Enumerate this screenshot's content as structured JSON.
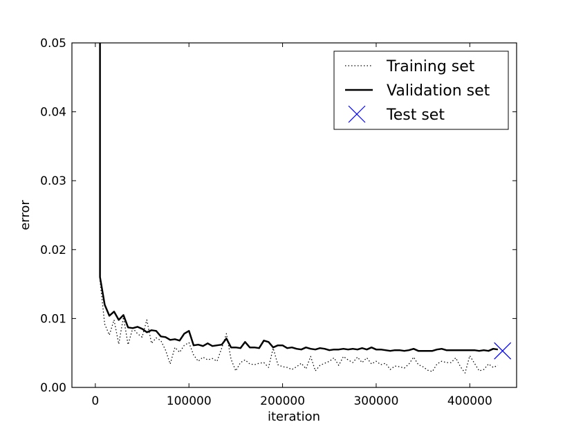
{
  "chart_data": {
    "type": "line",
    "xlabel": "iteration",
    "ylabel": "error",
    "xlim": [
      -25000,
      450000
    ],
    "ylim": [
      0,
      0.05
    ],
    "x_ticks": [
      0,
      100000,
      200000,
      300000,
      400000
    ],
    "x_tick_labels": [
      "0",
      "100000",
      "200000",
      "300000",
      "400000"
    ],
    "y_ticks": [
      0,
      0.01,
      0.02,
      0.03,
      0.04,
      0.05
    ],
    "y_tick_labels": [
      "0.00",
      "0.01",
      "0.02",
      "0.03",
      "0.04",
      "0.05"
    ],
    "grid": false,
    "legend_position": "top-right",
    "series": [
      {
        "name": "Training set",
        "style": "dotted",
        "color": "#000000",
        "x": [
          5000,
          10000,
          15000,
          20000,
          25000,
          30000,
          35000,
          40000,
          45000,
          50000,
          55000,
          60000,
          65000,
          70000,
          75000,
          80000,
          85000,
          90000,
          95000,
          100000,
          105000,
          110000,
          115000,
          120000,
          125000,
          130000,
          135000,
          140000,
          145000,
          150000,
          155000,
          160000,
          165000,
          170000,
          175000,
          180000,
          185000,
          190000,
          195000,
          200000,
          205000,
          210000,
          215000,
          220000,
          225000,
          230000,
          235000,
          240000,
          245000,
          250000,
          255000,
          260000,
          265000,
          270000,
          275000,
          280000,
          285000,
          290000,
          295000,
          300000,
          305000,
          310000,
          315000,
          320000,
          325000,
          330000,
          335000,
          340000,
          345000,
          350000,
          355000,
          360000,
          365000,
          370000,
          375000,
          380000,
          385000,
          390000,
          395000,
          400000,
          405000,
          410000,
          415000,
          420000,
          425000,
          430000
        ],
        "values": [
          0.0155,
          0.0092,
          0.0076,
          0.0098,
          0.0063,
          0.0102,
          0.0062,
          0.0086,
          0.0078,
          0.0073,
          0.0098,
          0.0064,
          0.0072,
          0.0068,
          0.0054,
          0.0034,
          0.0058,
          0.0051,
          0.0061,
          0.0065,
          0.0047,
          0.0038,
          0.0044,
          0.004,
          0.0042,
          0.0038,
          0.0057,
          0.0078,
          0.0041,
          0.0024,
          0.0036,
          0.004,
          0.0034,
          0.0033,
          0.0035,
          0.0036,
          0.0029,
          0.0057,
          0.0033,
          0.003,
          0.0029,
          0.0026,
          0.003,
          0.0035,
          0.0027,
          0.0045,
          0.0024,
          0.0032,
          0.0035,
          0.0038,
          0.0043,
          0.0032,
          0.0045,
          0.004,
          0.0036,
          0.0044,
          0.0036,
          0.0043,
          0.0034,
          0.0038,
          0.0033,
          0.0035,
          0.0026,
          0.0031,
          0.003,
          0.0028,
          0.0034,
          0.0044,
          0.0033,
          0.003,
          0.0025,
          0.0023,
          0.0034,
          0.0038,
          0.0036,
          0.0036,
          0.0043,
          0.003,
          0.0021,
          0.0046,
          0.0035,
          0.0024,
          0.0026,
          0.0034,
          0.0029,
          0.0032
        ]
      },
      {
        "name": "Validation set",
        "style": "solid",
        "color": "#000000",
        "x": [
          5000,
          5000,
          10000,
          15000,
          20000,
          25000,
          30000,
          35000,
          40000,
          45000,
          50000,
          55000,
          60000,
          65000,
          70000,
          75000,
          80000,
          85000,
          90000,
          95000,
          100000,
          105000,
          110000,
          115000,
          120000,
          125000,
          130000,
          135000,
          140000,
          145000,
          150000,
          155000,
          160000,
          165000,
          170000,
          175000,
          180000,
          185000,
          190000,
          195000,
          200000,
          205000,
          210000,
          215000,
          220000,
          225000,
          230000,
          235000,
          240000,
          245000,
          250000,
          255000,
          260000,
          265000,
          270000,
          275000,
          280000,
          285000,
          290000,
          295000,
          300000,
          305000,
          310000,
          315000,
          320000,
          325000,
          330000,
          335000,
          340000,
          345000,
          350000,
          355000,
          360000,
          365000,
          370000,
          375000,
          380000,
          385000,
          390000,
          395000,
          400000,
          405000,
          410000,
          415000,
          420000,
          425000,
          430000
        ],
        "values": [
          0.05,
          0.016,
          0.012,
          0.0104,
          0.011,
          0.0098,
          0.0105,
          0.0087,
          0.0086,
          0.0088,
          0.0085,
          0.008,
          0.0083,
          0.0082,
          0.0074,
          0.0073,
          0.0069,
          0.007,
          0.0068,
          0.0078,
          0.0082,
          0.0061,
          0.0062,
          0.006,
          0.0064,
          0.006,
          0.0061,
          0.0062,
          0.0071,
          0.0058,
          0.0058,
          0.0057,
          0.0066,
          0.0058,
          0.0058,
          0.0057,
          0.0068,
          0.0066,
          0.0058,
          0.0061,
          0.0061,
          0.0057,
          0.0058,
          0.0056,
          0.0055,
          0.0058,
          0.0056,
          0.0055,
          0.0057,
          0.0056,
          0.0054,
          0.0055,
          0.0055,
          0.0056,
          0.0055,
          0.0056,
          0.0055,
          0.0057,
          0.0055,
          0.0058,
          0.0055,
          0.0055,
          0.0054,
          0.0053,
          0.0054,
          0.0054,
          0.0053,
          0.0054,
          0.0056,
          0.0053,
          0.0053,
          0.0053,
          0.0053,
          0.0055,
          0.0056,
          0.0054,
          0.0054,
          0.0054,
          0.0054,
          0.0054,
          0.0054,
          0.0054,
          0.0053,
          0.0054,
          0.0053,
          0.0056,
          0.0055
        ]
      },
      {
        "name": "Test set",
        "style": "marker-x",
        "color": "#0000ff",
        "x": [
          435000
        ],
        "values": [
          0.0053
        ]
      }
    ]
  }
}
